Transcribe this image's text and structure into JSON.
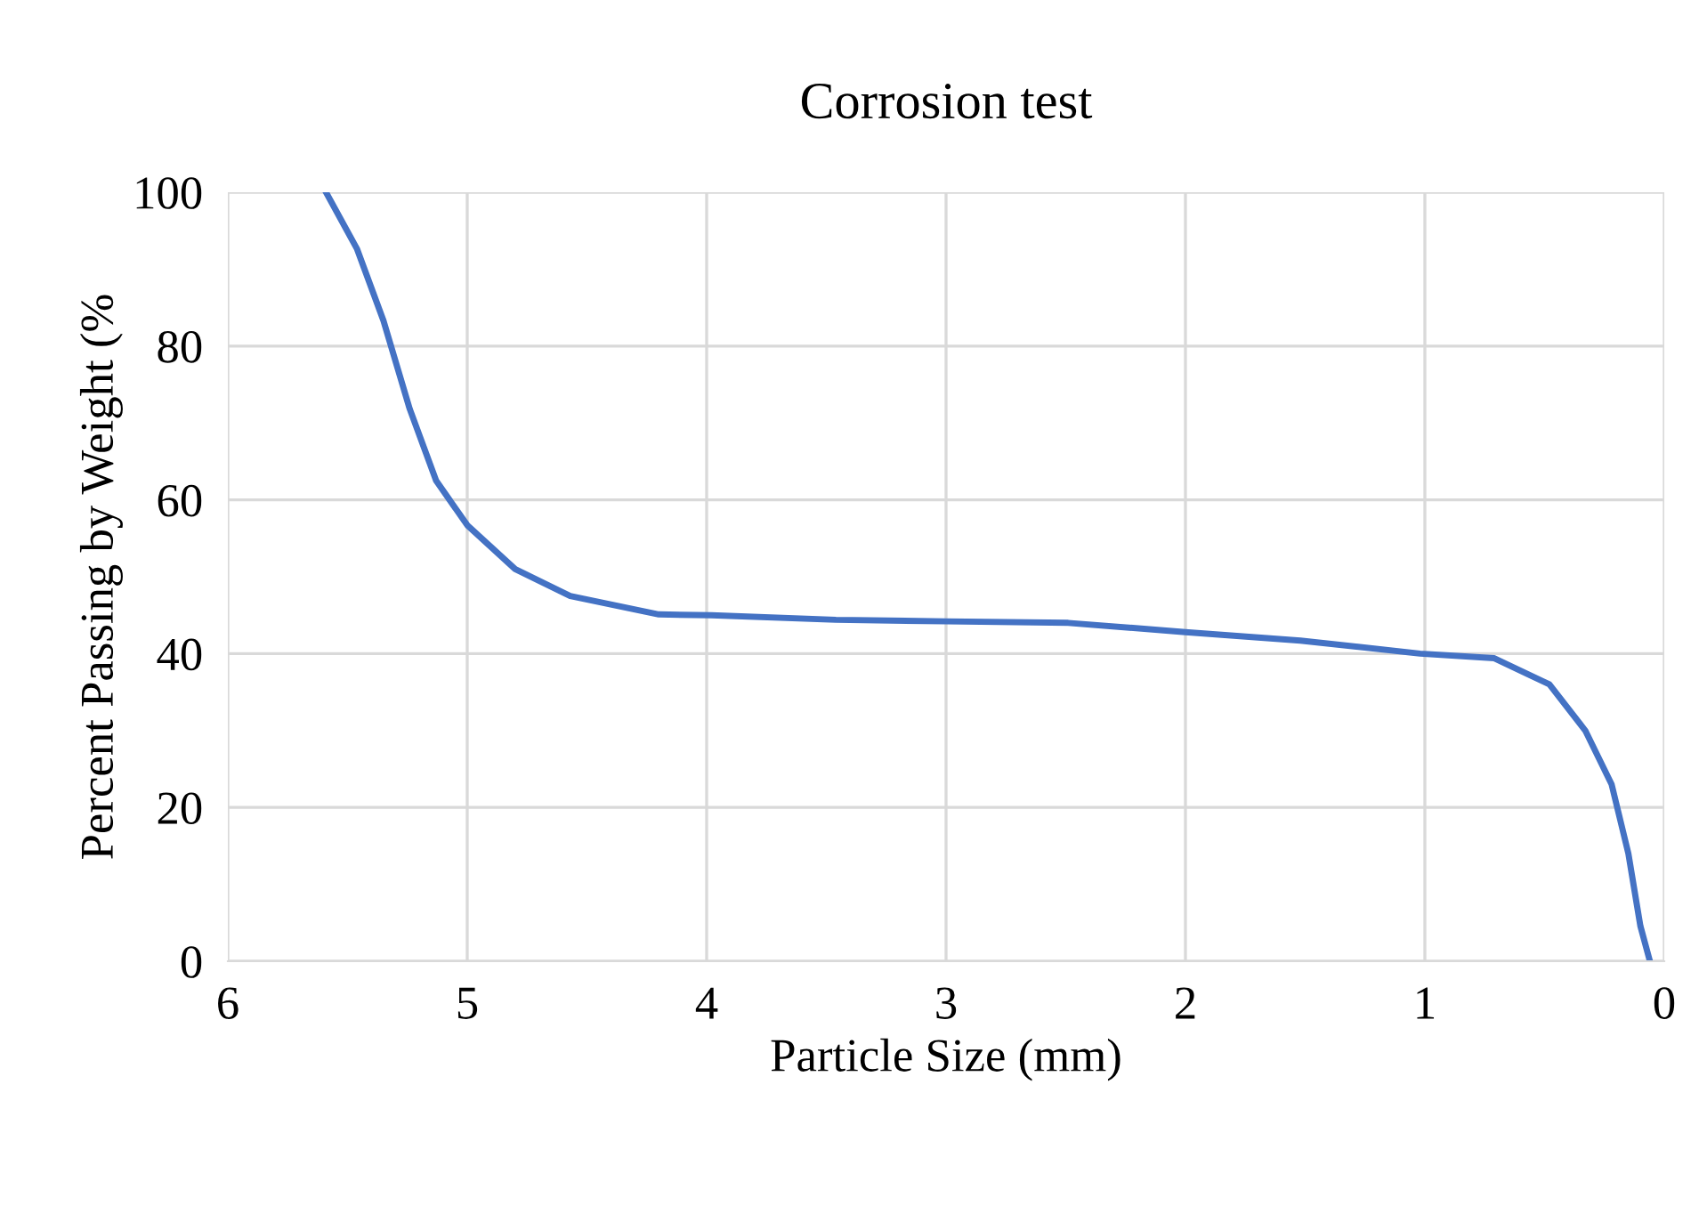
{
  "chart_data": {
    "type": "line",
    "title": "Corrosion test",
    "xlabel": "Particle Size (mm)",
    "ylabel": "Percent Passing by Weight (%",
    "series": [
      {
        "color": "#4472c4",
        "x": [
          5.59,
          5.46,
          5.35,
          5.24,
          5.13,
          5.0,
          4.8,
          4.57,
          4.2,
          3.98,
          3.46,
          3.0,
          2.49,
          2.0,
          1.52,
          1.02,
          0.71,
          0.48,
          0.33,
          0.22,
          0.15,
          0.1,
          0.06
        ],
        "values": [
          100,
          92.6,
          83.3,
          71.8,
          62.5,
          56.7,
          51,
          47.5,
          45.1,
          45,
          44.4,
          44.2,
          44,
          42.8,
          41.7,
          40,
          39.4,
          36,
          30,
          23,
          14,
          4.6,
          0
        ]
      }
    ],
    "xlim": [
      6,
      0
    ],
    "xticks": [
      6,
      5,
      4,
      3,
      2,
      1,
      0
    ],
    "ylim": [
      0,
      100
    ],
    "yticks": [
      0,
      20,
      40,
      60,
      80,
      100
    ],
    "grid": true,
    "marker": "none",
    "line_style": "solid",
    "legend": false
  }
}
